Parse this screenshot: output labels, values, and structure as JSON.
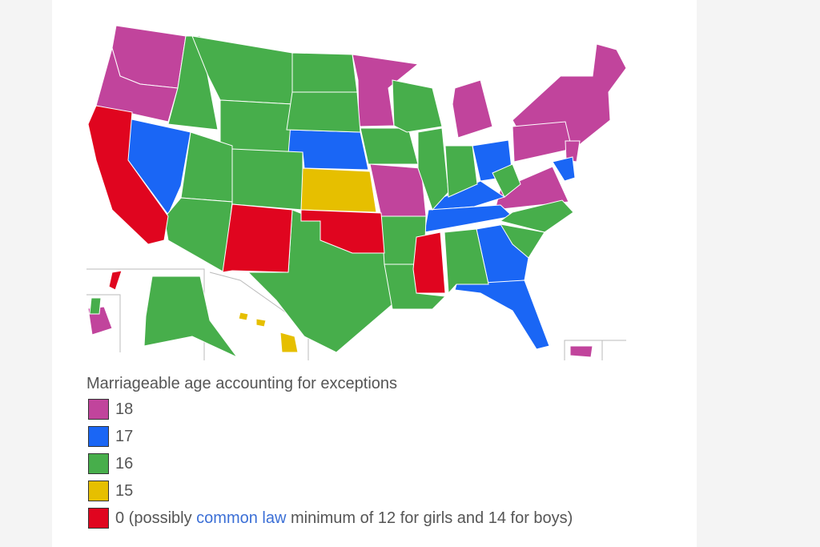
{
  "legend": {
    "title": "Marriageable age accounting for exceptions",
    "items": [
      {
        "label": "18",
        "color": "#c1449c"
      },
      {
        "label": "17",
        "color": "#1a66f5"
      },
      {
        "label": "16",
        "color": "#47ae4b"
      },
      {
        "label": "15",
        "color": "#e6bf00"
      },
      {
        "label_before": "0 (possibly ",
        "link": "common law",
        "label_after": " minimum of 12 for girls and 14 for boys)",
        "color": "#e0051f"
      }
    ]
  }
}
